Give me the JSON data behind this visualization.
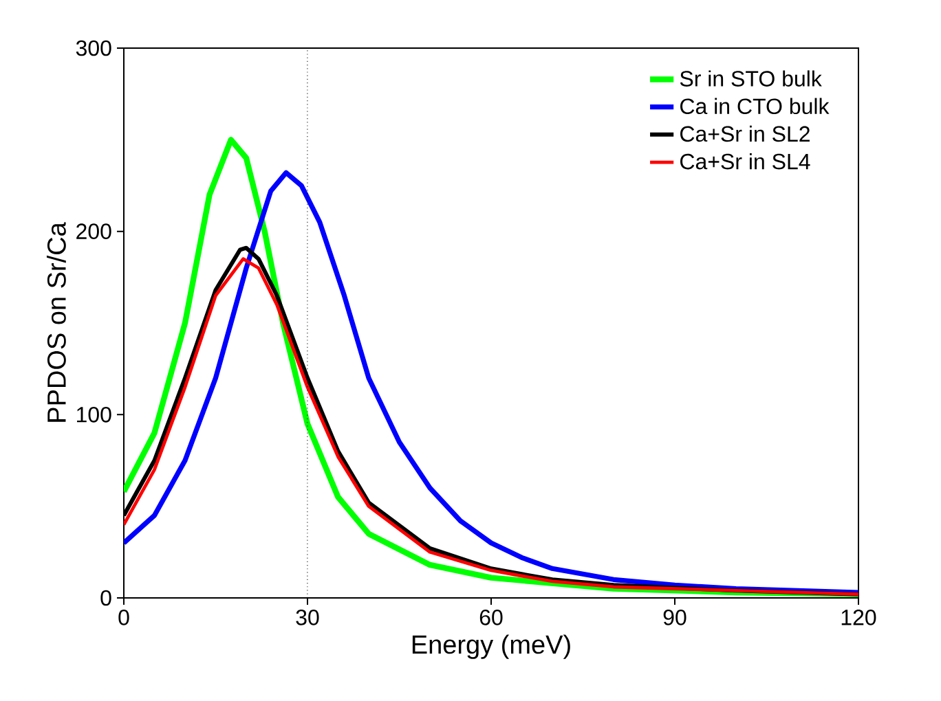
{
  "chart_data": {
    "type": "line",
    "xlabel": "Energy (meV)",
    "ylabel": "PPDOS on Sr/Ca",
    "xlim": [
      0,
      120
    ],
    "ylim": [
      0,
      300
    ],
    "xticks": [
      0,
      30,
      60,
      90,
      120
    ],
    "yticks": [
      0,
      100,
      200,
      300
    ],
    "legend": "top right",
    "grid": false,
    "marker": "none",
    "line_style": "solid",
    "ref_lines": [
      {
        "axis": "x",
        "value": 30,
        "color": "#000000",
        "line_style": "dotted"
      }
    ],
    "series": [
      {
        "name": "Sr in STO bulk",
        "color": "#00ff00",
        "x": [
          0,
          5,
          10,
          14,
          17.5,
          20,
          23,
          26,
          30,
          35,
          40,
          50,
          60,
          80,
          100,
          120
        ],
        "values": [
          58,
          90,
          150,
          220,
          250,
          240,
          200,
          150,
          95,
          55,
          35,
          18,
          11,
          5,
          3,
          2
        ]
      },
      {
        "name": "Ca in CTO bulk",
        "color": "#0000ff",
        "x": [
          0,
          5,
          10,
          15,
          20,
          24,
          26.5,
          29,
          32,
          36,
          40,
          45,
          50,
          55,
          60,
          65,
          70,
          80,
          90,
          100,
          120
        ],
        "values": [
          30,
          45,
          75,
          120,
          180,
          222,
          232,
          225,
          205,
          165,
          120,
          85,
          60,
          42,
          30,
          22,
          16,
          10,
          7,
          5,
          3
        ]
      },
      {
        "name": "Ca+Sr in SL2",
        "color": "#000000",
        "x": [
          0,
          5,
          10,
          15,
          19,
          20,
          22,
          25,
          30,
          35,
          40,
          50,
          60,
          70,
          80,
          100,
          120
        ],
        "values": [
          45,
          75,
          120,
          168,
          190,
          191,
          185,
          165,
          120,
          80,
          52,
          27,
          16,
          10,
          7,
          4,
          2
        ]
      },
      {
        "name": "Ca+Sr in SL4",
        "color": "#ff0000",
        "x": [
          0,
          5,
          10,
          15,
          19.5,
          22,
          25,
          30,
          35,
          40,
          50,
          60,
          70,
          80,
          100,
          120
        ],
        "values": [
          40,
          70,
          115,
          165,
          185,
          180,
          160,
          115,
          77,
          50,
          25,
          15,
          9,
          6,
          4,
          2
        ]
      }
    ]
  }
}
